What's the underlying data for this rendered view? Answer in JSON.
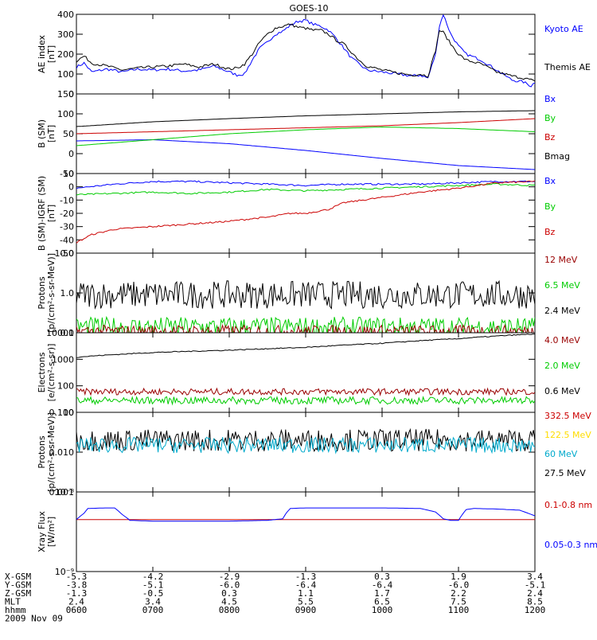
{
  "title": "GOES-10",
  "chart_data": [
    {
      "type": "line",
      "panel": "ae",
      "ylabel": [
        "AE index",
        "[nT]"
      ],
      "ylim": [
        0,
        400
      ],
      "yscale": "linear",
      "yticks": [
        "0",
        "100",
        "200",
        "300",
        "400"
      ],
      "ytick_values": [
        0,
        100,
        200,
        300,
        400
      ],
      "xlim": [
        6,
        12
      ],
      "legend": [
        {
          "label": "Kyoto AE",
          "color": "#0000ff"
        },
        {
          "label": "Themis AE",
          "color": "#000000"
        }
      ],
      "series": [
        {
          "name": "Kyoto AE",
          "color": "#0000ff",
          "x": [
            6.0,
            6.1,
            6.2,
            6.4,
            6.6,
            6.8,
            7.0,
            7.2,
            7.4,
            7.6,
            7.8,
            8.0,
            8.1,
            8.2,
            8.3,
            8.4,
            8.5,
            8.6,
            8.7,
            8.8,
            8.9,
            9.0,
            9.1,
            9.2,
            9.3,
            9.4,
            9.5,
            9.6,
            9.7,
            9.8,
            10.0,
            10.2,
            10.4,
            10.5,
            10.6,
            10.7,
            10.75,
            10.8,
            10.9,
            11.0,
            11.1,
            11.3,
            11.5,
            11.7,
            11.85,
            11.95,
            12.0
          ],
          "y": [
            135,
            155,
            110,
            125,
            110,
            125,
            120,
            125,
            115,
            120,
            140,
            110,
            95,
            100,
            170,
            230,
            260,
            300,
            315,
            345,
            365,
            370,
            350,
            340,
            320,
            280,
            230,
            180,
            150,
            120,
            110,
            100,
            90,
            95,
            80,
            200,
            340,
            400,
            300,
            240,
            200,
            170,
            120,
            70,
            60,
            40,
            60
          ]
        },
        {
          "name": "Themis AE",
          "color": "#000000",
          "x": [
            6.0,
            6.1,
            6.2,
            6.4,
            6.6,
            6.8,
            7.0,
            7.2,
            7.4,
            7.6,
            7.8,
            8.0,
            8.1,
            8.2,
            8.3,
            8.4,
            8.5,
            8.6,
            8.7,
            8.8,
            8.9,
            9.0,
            9.1,
            9.2,
            9.3,
            9.4,
            9.5,
            9.6,
            9.7,
            9.8,
            10.0,
            10.2,
            10.4,
            10.5,
            10.6,
            10.7,
            10.75,
            10.8,
            10.9,
            11.0,
            11.1,
            11.3,
            11.5,
            11.7,
            11.85,
            11.95,
            12.0
          ],
          "y": [
            165,
            190,
            155,
            140,
            120,
            130,
            135,
            140,
            150,
            135,
            150,
            125,
            130,
            150,
            200,
            260,
            300,
            330,
            340,
            350,
            335,
            330,
            320,
            320,
            300,
            270,
            250,
            210,
            170,
            140,
            120,
            105,
            95,
            100,
            90,
            220,
            320,
            310,
            250,
            200,
            170,
            150,
            110,
            90,
            80,
            70,
            60
          ]
        }
      ]
    },
    {
      "type": "line",
      "panel": "bsm",
      "ylabel": [
        "B (SM)",
        "[nT]"
      ],
      "ylim": [
        -50,
        150
      ],
      "yscale": "linear",
      "yticks": [
        "-50",
        "0",
        "50",
        "100",
        "150"
      ],
      "ytick_values": [
        -50,
        0,
        50,
        100,
        150
      ],
      "xlim": [
        6,
        12
      ],
      "legend": [
        {
          "label": "Bx",
          "color": "#0000ff"
        },
        {
          "label": "By",
          "color": "#00cc00"
        },
        {
          "label": "Bz",
          "color": "#cc0000"
        },
        {
          "label": "Bmag",
          "color": "#000000"
        }
      ],
      "series": [
        {
          "name": "Bx",
          "color": "#0000ff",
          "x": [
            6,
            7,
            8,
            9,
            10,
            11,
            12
          ],
          "y": [
            32,
            35,
            25,
            8,
            -12,
            -30,
            -40
          ]
        },
        {
          "name": "By",
          "color": "#00cc00",
          "x": [
            6,
            7,
            8,
            9,
            10,
            11,
            12
          ],
          "y": [
            20,
            35,
            50,
            60,
            67,
            63,
            55
          ]
        },
        {
          "name": "Bz",
          "color": "#cc0000",
          "x": [
            6,
            7,
            8,
            9,
            10,
            11,
            12
          ],
          "y": [
            50,
            55,
            60,
            65,
            70,
            78,
            88
          ]
        },
        {
          "name": "Bmag",
          "color": "#000000",
          "x": [
            6,
            7,
            8,
            9,
            10,
            11,
            12
          ],
          "y": [
            68,
            80,
            88,
            95,
            100,
            105,
            108
          ]
        }
      ]
    },
    {
      "type": "line",
      "panel": "bres",
      "ylabel": [
        "B (SM)-IGRF (SM)",
        "[nT]"
      ],
      "ylim": [
        -50,
        10
      ],
      "yscale": "linear",
      "yticks": [
        "-50",
        "-40",
        "-30",
        "-20",
        "-10",
        "0",
        "10"
      ],
      "ytick_values": [
        -50,
        -40,
        -30,
        -20,
        -10,
        0,
        10
      ],
      "xlim": [
        6,
        12
      ],
      "legend": [
        {
          "label": "Bx",
          "color": "#0000ff"
        },
        {
          "label": "By",
          "color": "#00cc00"
        },
        {
          "label": "Bz",
          "color": "#cc0000"
        }
      ],
      "series": [
        {
          "name": "Bx",
          "color": "#0000ff",
          "x": [
            6,
            6.5,
            7,
            7.5,
            8,
            8.5,
            9,
            9.5,
            10,
            10.5,
            11,
            11.5,
            12
          ],
          "y": [
            -1,
            2,
            4,
            4,
            3,
            2,
            1,
            2,
            2,
            2,
            3,
            4,
            4
          ]
        },
        {
          "name": "By",
          "color": "#00cc00",
          "x": [
            6,
            6.5,
            7,
            7.5,
            8,
            8.5,
            9,
            9.5,
            10,
            10.5,
            11,
            11.5,
            12
          ],
          "y": [
            -6,
            -5,
            -4,
            -5,
            -4,
            -2,
            -3,
            -2,
            -1,
            0,
            1,
            2,
            1
          ]
        },
        {
          "name": "Bz",
          "color": "#cc0000",
          "x": [
            6,
            6.2,
            6.5,
            7,
            7.5,
            8,
            8.3,
            8.5,
            8.8,
            9,
            9.3,
            9.5,
            10,
            10.5,
            11,
            11.5,
            12
          ],
          "y": [
            -42,
            -36,
            -32,
            -30,
            -28,
            -26,
            -24,
            -23,
            -20,
            -20,
            -17,
            -12,
            -8,
            -4,
            -1,
            3,
            4
          ]
        }
      ]
    },
    {
      "type": "line",
      "panel": "protons-low",
      "ylabel": [
        "Protons",
        "[p/(cm²-s-sr-MeV)]"
      ],
      "ylim": [
        0.1,
        10
      ],
      "yscale": "log",
      "yticks": [
        "0.1",
        "1.0",
        "10.0"
      ],
      "ytick_values": [
        0.1,
        1,
        10
      ],
      "xlim": [
        6,
        12
      ],
      "legend": [
        {
          "label": "12 MeV",
          "color": "#990000"
        },
        {
          "label": "6.5 MeV",
          "color": "#00cc00"
        },
        {
          "label": "2.4 MeV",
          "color": "#000000"
        }
      ],
      "series": [
        {
          "name": "2.4 MeV",
          "color": "#000000",
          "level": 0.9,
          "noise": 0.35
        },
        {
          "name": "6.5 MeV",
          "color": "#00cc00",
          "level": 0.14,
          "noise": 0.25
        },
        {
          "name": "12 MeV",
          "color": "#990000",
          "level": 0.11,
          "noise": 0.15
        }
      ]
    },
    {
      "type": "line",
      "panel": "electrons",
      "ylabel": [
        "Electrons",
        "[e/(cm²-s-sr)]"
      ],
      "ylim": [
        10,
        10000
      ],
      "yscale": "log",
      "yticks": [
        "10",
        "100",
        "1000",
        "10000"
      ],
      "ytick_values": [
        10,
        100,
        1000,
        10000
      ],
      "xlim": [
        6,
        12
      ],
      "legend": [
        {
          "label": "4.0 MeV",
          "color": "#990000"
        },
        {
          "label": "2.0 MeV",
          "color": "#00cc00"
        },
        {
          "label": "0.6 MeV",
          "color": "#000000"
        }
      ],
      "series": [
        {
          "name": "0.6 MeV",
          "color": "#000000",
          "x": [
            6,
            7,
            8,
            9,
            10,
            11,
            12
          ],
          "y": [
            1200,
            1800,
            2200,
            2800,
            4000,
            6000,
            9000
          ]
        },
        {
          "name": "4.0 MeV",
          "color": "#990000",
          "level": 60,
          "noise": 0.12
        },
        {
          "name": "2.0 MeV",
          "color": "#00cc00",
          "level": 28,
          "noise": 0.14
        }
      ]
    },
    {
      "type": "line",
      "panel": "protons-high",
      "ylabel": [
        "Protons",
        "[p/(cm²-s-sr-MeV)]"
      ],
      "ylim": [
        0.001,
        0.1
      ],
      "yscale": "log",
      "yticks": [
        "0.001",
        "0.010",
        "0.100"
      ],
      "ytick_values": [
        0.001,
        0.01,
        0.1
      ],
      "xlim": [
        6,
        12
      ],
      "legend": [
        {
          "label": "332.5 MeV",
          "color": "#cc0000"
        },
        {
          "label": "122.5 MeV",
          "color": "#ffdd00"
        },
        {
          "label": "60 MeV",
          "color": "#00aacc"
        },
        {
          "label": "27.5 MeV",
          "color": "#000000"
        }
      ],
      "series": [
        {
          "name": "27.5 MeV",
          "color": "#000000",
          "level": 0.02,
          "noise": 0.28
        },
        {
          "name": "60 MeV",
          "color": "#00aacc",
          "level": 0.015,
          "noise": 0.2
        }
      ]
    },
    {
      "type": "line",
      "panel": "xray",
      "ylabel": [
        "Xray Flux",
        "[W/m²]"
      ],
      "ylim": [
        1e-09,
        1e-08
      ],
      "yscale": "log",
      "yticks": [
        "10⁻⁹",
        "10⁻⁸"
      ],
      "ytick_values": [
        1e-09,
        1e-08
      ],
      "xlim": [
        6,
        12
      ],
      "legend": [
        {
          "label": "0.1-0.8 nm",
          "color": "#cc0000"
        },
        {
          "label": "0.05-0.3 nm",
          "color": "#0000ff"
        }
      ],
      "series": [
        {
          "name": "0.1-0.8 nm",
          "color": "#cc0000",
          "x": [
            6,
            12
          ],
          "y": [
            4.5e-09,
            4.5e-09
          ]
        },
        {
          "name": "0.05-0.3 nm",
          "color": "#0000ff",
          "x": [
            6.0,
            6.1,
            6.15,
            6.4,
            6.5,
            6.6,
            6.7,
            7.0,
            7.5,
            8.0,
            8.5,
            8.7,
            8.75,
            8.8,
            9.0,
            9.5,
            10.0,
            10.5,
            10.7,
            10.8,
            10.9,
            11.0,
            11.05,
            11.1,
            11.2,
            11.5,
            11.8,
            12.0
          ],
          "y": [
            4.5e-09,
            5.4e-09,
            6.2e-09,
            6.3e-09,
            6.3e-09,
            5.2e-09,
            4.4e-09,
            4.3e-09,
            4.3e-09,
            4.3e-09,
            4.4e-09,
            4.6e-09,
            5.5e-09,
            6.2e-09,
            6.3e-09,
            6.3e-09,
            6.3e-09,
            6.2e-09,
            5.6e-09,
            4.6e-09,
            4.4e-09,
            4.4e-09,
            5.2e-09,
            6e-09,
            6.2e-09,
            6.1e-09,
            5.9e-09,
            5e-09
          ]
        }
      ]
    }
  ],
  "x_axis": {
    "range_hours": [
      6,
      12
    ],
    "rows": [
      {
        "label": "X-GSM",
        "values": [
          "-5.3",
          "-4.2",
          "-2.9",
          "-1.3",
          "0.3",
          "1.9",
          "3.4"
        ]
      },
      {
        "label": "Y-GSM",
        "values": [
          "-3.8",
          "-5.1",
          "-6.0",
          "-6.4",
          "-6.4",
          "-6.0",
          "-5.1"
        ]
      },
      {
        "label": "Z-GSM",
        "values": [
          "-1.3",
          "-0.5",
          "0.3",
          "1.1",
          "1.7",
          "2.2",
          "2.4"
        ]
      },
      {
        "label": "MLT",
        "values": [
          "2.4",
          "3.4",
          "4.5",
          "5.5",
          "6.5",
          "7.5",
          "8.5"
        ]
      },
      {
        "label": "hhmm",
        "values": [
          "0600",
          "0700",
          "0800",
          "0900",
          "1000",
          "1100",
          "1200"
        ]
      }
    ],
    "date": "2009 Nov 09"
  }
}
